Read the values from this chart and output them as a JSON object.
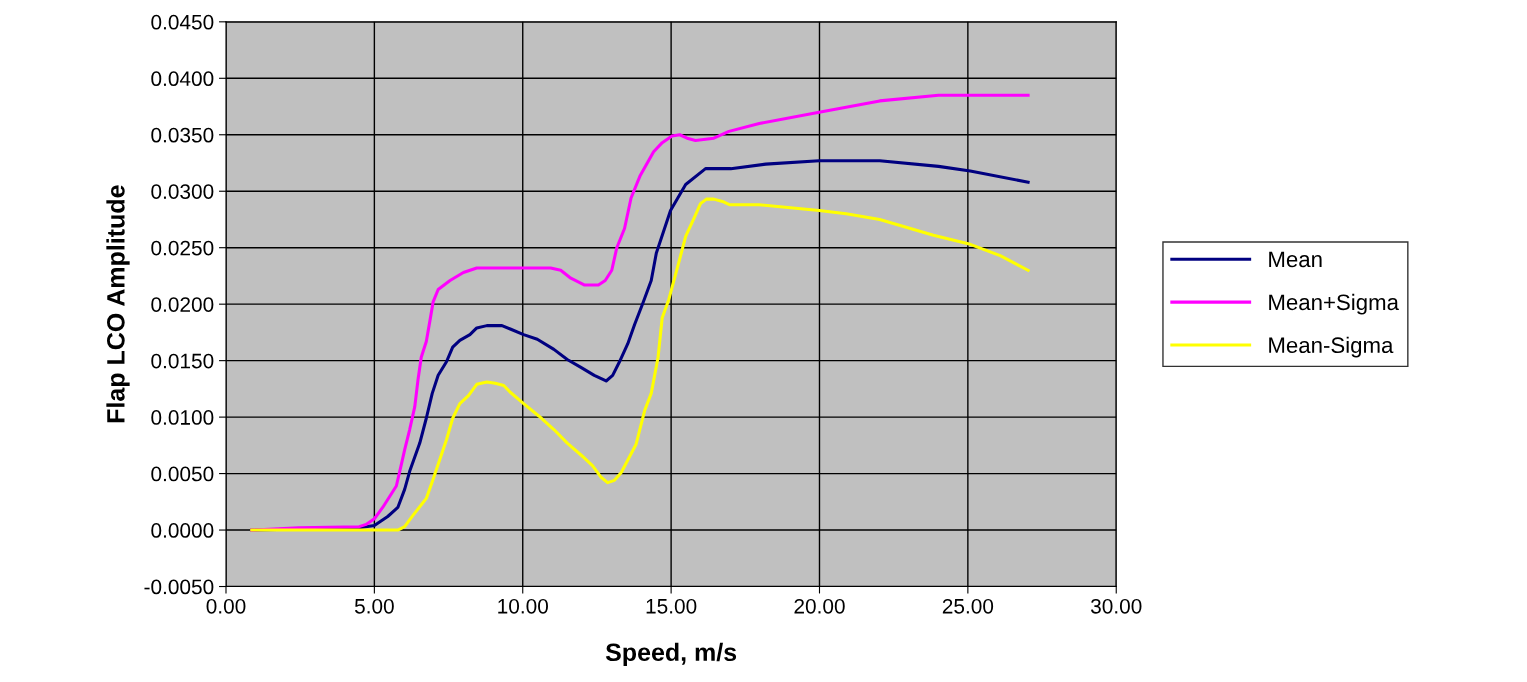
{
  "chart_data": {
    "type": "line",
    "xlabel": "Speed, m/s",
    "ylabel": "Flap LCO Amplitude",
    "xlim": [
      0,
      30
    ],
    "ylim": [
      -0.005,
      0.045
    ],
    "xticks": [
      {
        "value": 0,
        "label": "0.00"
      },
      {
        "value": 5,
        "label": "5.00"
      },
      {
        "value": 10,
        "label": "10.00"
      },
      {
        "value": 15,
        "label": "15.00"
      },
      {
        "value": 20,
        "label": "20.00"
      },
      {
        "value": 25,
        "label": "25.00"
      },
      {
        "value": 30,
        "label": "30.00"
      }
    ],
    "yticks": [
      {
        "value": -0.005,
        "label": "-0.0050"
      },
      {
        "value": 0,
        "label": "0.0000"
      },
      {
        "value": 0.005,
        "label": "0.0050"
      },
      {
        "value": 0.01,
        "label": "0.0100"
      },
      {
        "value": 0.015,
        "label": "0.0150"
      },
      {
        "value": 0.02,
        "label": "0.0200"
      },
      {
        "value": 0.025,
        "label": "0.0250"
      },
      {
        "value": 0.03,
        "label": "0.0300"
      },
      {
        "value": 0.035,
        "label": "0.0350"
      },
      {
        "value": 0.04,
        "label": "0.0400"
      },
      {
        "value": 0.045,
        "label": "0.0450"
      }
    ],
    "grid": true,
    "legend": "right",
    "marker": "none",
    "line_style": "solid",
    "series": [
      {
        "name": "Mean",
        "color": "#000080",
        "x": [
          0.87,
          4.49,
          5.0,
          5.45,
          5.79,
          6.02,
          6.19,
          6.53,
          6.75,
          6.95,
          7.15,
          7.43,
          7.64,
          7.88,
          8.22,
          8.45,
          8.79,
          9.3,
          9.58,
          10.03,
          10.49,
          11.05,
          11.5,
          11.96,
          12.41,
          12.81,
          13.03,
          13.26,
          13.54,
          13.77,
          14.05,
          14.33,
          14.5,
          14.98,
          15.49,
          16.16,
          17.01,
          18.19,
          19.99,
          22.03,
          24.01,
          25.08,
          27.03
        ],
        "values": [
          0,
          0.0002,
          0.0004,
          0.0012,
          0.002,
          0.0036,
          0.0052,
          0.0077,
          0.0099,
          0.0121,
          0.0137,
          0.0149,
          0.0162,
          0.0168,
          0.0173,
          0.0179,
          0.0181,
          0.0181,
          0.0178,
          0.0173,
          0.0169,
          0.016,
          0.0151,
          0.0144,
          0.0137,
          0.0132,
          0.0137,
          0.0149,
          0.0165,
          0.0182,
          0.0201,
          0.0221,
          0.0245,
          0.0283,
          0.0306,
          0.032,
          0.032,
          0.0324,
          0.0327,
          0.0327,
          0.0322,
          0.0318,
          0.0308
        ]
      },
      {
        "name": "Mean+Sigma",
        "color": "#ff00ff",
        "x": [
          0.87,
          2.45,
          4.49,
          4.72,
          5.0,
          5.28,
          5.74,
          5.9,
          6.02,
          6.19,
          6.36,
          6.47,
          6.58,
          6.75,
          6.87,
          6.98,
          7.15,
          7.55,
          8.0,
          8.45,
          9.36,
          10.94,
          11.28,
          11.62,
          12.07,
          12.55,
          12.78,
          13.0,
          13.17,
          13.43,
          13.65,
          13.96,
          14.41,
          14.7,
          15.03,
          15.29,
          15.54,
          15.82,
          16.44,
          16.95,
          17.97,
          19.99,
          22.03,
          24.01,
          27.03
        ],
        "values": [
          0,
          0.0002,
          0.0003,
          0.0005,
          0.001,
          0.002,
          0.0039,
          0.0057,
          0.0071,
          0.0089,
          0.0109,
          0.0133,
          0.0153,
          0.0167,
          0.0185,
          0.0202,
          0.0213,
          0.0221,
          0.0228,
          0.0232,
          0.0232,
          0.0232,
          0.023,
          0.0223,
          0.0217,
          0.0217,
          0.0221,
          0.023,
          0.025,
          0.0267,
          0.0294,
          0.0314,
          0.0335,
          0.0343,
          0.0349,
          0.035,
          0.0347,
          0.0345,
          0.0347,
          0.0353,
          0.036,
          0.037,
          0.038,
          0.0385,
          0.0385
        ]
      },
      {
        "name": "Mean-Sigma",
        "color": "#ffff00",
        "x": [
          0.87,
          5.79,
          6.02,
          6.3,
          6.75,
          6.98,
          7.21,
          7.43,
          7.64,
          7.88,
          8.17,
          8.45,
          8.79,
          9.07,
          9.36,
          9.58,
          10.03,
          10.54,
          11.05,
          11.5,
          12.07,
          12.35,
          12.63,
          12.86,
          13.09,
          13.32,
          13.82,
          14.11,
          14.33,
          14.56,
          14.7,
          14.92,
          15.26,
          15.49,
          15.77,
          15.99,
          16.19,
          16.44,
          16.73,
          16.98,
          17.97,
          19.99,
          20.9,
          22.03,
          23.84,
          25.08,
          26.09,
          27.03
        ],
        "values": [
          0,
          0,
          0.0003,
          0.0013,
          0.0028,
          0.0045,
          0.0063,
          0.008,
          0.0099,
          0.0112,
          0.0119,
          0.0129,
          0.0131,
          0.013,
          0.0128,
          0.0122,
          0.0112,
          0.0101,
          0.0089,
          0.0077,
          0.0064,
          0.0057,
          0.0047,
          0.0042,
          0.0044,
          0.0051,
          0.0076,
          0.0106,
          0.0121,
          0.0153,
          0.0188,
          0.0204,
          0.0237,
          0.026,
          0.0276,
          0.0289,
          0.0293,
          0.0293,
          0.0291,
          0.0288,
          0.0288,
          0.0283,
          0.028,
          0.0275,
          0.0261,
          0.0253,
          0.0243,
          0.023
        ]
      }
    ]
  }
}
